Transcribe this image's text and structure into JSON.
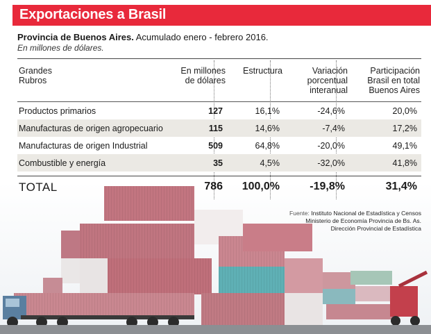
{
  "header": {
    "title": "Exportaciones a Brasil",
    "accent_color": "#e8293b"
  },
  "subtitle": {
    "bold": "Provincia de Buenos Aires.",
    "rest": " Acumulado enero - febrero 2016.",
    "units": "En millones de dólares."
  },
  "table": {
    "headers": [
      [
        "Grandes",
        "Rubros"
      ],
      [
        "En millones",
        "de dólares"
      ],
      [
        "Estructura"
      ],
      [
        "Variación",
        "porcentual",
        "interanual"
      ],
      [
        "Participación",
        "Brasil en total",
        "Buenos Aires"
      ]
    ],
    "rows": [
      {
        "rubro": "Productos primarios",
        "millones": "127",
        "estructura": "16,1%",
        "variacion": "-24,6%",
        "participacion": "20,0%"
      },
      {
        "rubro": "Manufacturas de origen agropecuario",
        "millones": "115",
        "estructura": "14,6%",
        "variacion": "-7,4%",
        "participacion": "17,2%"
      },
      {
        "rubro": "Manufacturas de origen Industrial",
        "millones": "509",
        "estructura": "64,8%",
        "variacion": "-20,0%",
        "participacion": "49,1%"
      },
      {
        "rubro": "Combustible y energía",
        "millones": "35",
        "estructura": "4,5%",
        "variacion": "-32,0%",
        "participacion": "41,8%"
      }
    ],
    "total": {
      "rubro": "TOTAL",
      "millones": "786",
      "estructura": "100,0%",
      "variacion": "-19,8%",
      "participacion": "31,4%"
    }
  },
  "source": {
    "label": "Fuente:",
    "line1": " Instituto Nacional de Estadística y Censos",
    "line2": "Ministerio de Economía Provincia de Bs. As.",
    "line3": "Dirección Provincial de Estadística"
  }
}
